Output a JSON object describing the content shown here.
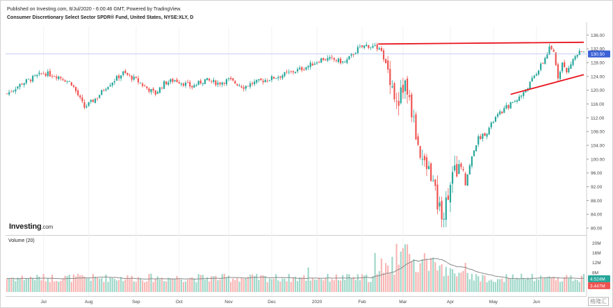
{
  "header": {
    "published": "Published on Investing.com, 8/Jul/2020 - 6:00:46 GMT, Powered by TradingView.",
    "title": "Consumer Discretionary Select Sector SPDR® Fund, United States, NYSE:XLY, D"
  },
  "logo": {
    "brand": "Investing",
    "suffix": ".com"
  },
  "volume_label": "Volume (20)",
  "watermark": "格隆汇",
  "colors": {
    "up": "#26a69a",
    "down": "#ef5350",
    "up_vol": "#9fd8c9",
    "down_vol": "#f7b6b4",
    "trend": "#e8141c",
    "ma": "#888888",
    "last_price": "#3d62d6"
  },
  "chart_data": {
    "type": "candlestick",
    "price_axis": {
      "ticks": [
        "136.00",
        "132.00",
        "128.00",
        "124.00",
        "120.00",
        "116.00",
        "112.00",
        "108.00",
        "104.00",
        "100.00",
        "96.00",
        "92.00",
        "88.00",
        "84.00",
        "80.00"
      ],
      "range": [
        78,
        138.5
      ]
    },
    "last_price": {
      "value": 130.5,
      "label": "130.50"
    },
    "volume_axis": {
      "ticks": [
        "20M",
        "16M",
        "12M",
        "8M"
      ],
      "range": [
        0,
        21
      ]
    },
    "volume_badges": [
      {
        "label": "4.524M",
        "value": 4.524,
        "color": "#26a69a"
      },
      {
        "label": "3.447M",
        "value": 3.447,
        "color": "#ef5350"
      }
    ],
    "x_labels": [
      {
        "label": "Jul",
        "day": 17
      },
      {
        "label": "Aug",
        "day": 38
      },
      {
        "label": "Sep",
        "day": 60
      },
      {
        "label": "Oct",
        "day": 80
      },
      {
        "label": "Nov",
        "day": 103
      },
      {
        "label": "Dec",
        "day": 123
      },
      {
        "label": "2020",
        "day": 144
      },
      {
        "label": "Feb",
        "day": 165
      },
      {
        "label": "Mar",
        "day": 184
      },
      {
        "label": "Apr",
        "day": 206
      },
      {
        "label": "May",
        "day": 226
      },
      {
        "label": "Jun",
        "day": 246
      }
    ],
    "days": 268,
    "key_points": [
      [
        0,
        119
      ],
      [
        7,
        122
      ],
      [
        17,
        125
      ],
      [
        24,
        124
      ],
      [
        30,
        122
      ],
      [
        36,
        115
      ],
      [
        42,
        118
      ],
      [
        46,
        121
      ],
      [
        54,
        125
      ],
      [
        60,
        123
      ],
      [
        64,
        121
      ],
      [
        69,
        119
      ],
      [
        73,
        122
      ],
      [
        78,
        123
      ],
      [
        86,
        121
      ],
      [
        92,
        123
      ],
      [
        98,
        122
      ],
      [
        103,
        123
      ],
      [
        110,
        121
      ],
      [
        114,
        122
      ],
      [
        120,
        123
      ],
      [
        126,
        124
      ],
      [
        131,
        125
      ],
      [
        136,
        126
      ],
      [
        140,
        127
      ],
      [
        146,
        129
      ],
      [
        151,
        129
      ],
      [
        157,
        128
      ],
      [
        163,
        132
      ],
      [
        167,
        133
      ],
      [
        171,
        132.5
      ],
      [
        174,
        131
      ],
      [
        178,
        124
      ],
      [
        181,
        116
      ],
      [
        185,
        122
      ],
      [
        188,
        114
      ],
      [
        191,
        104
      ],
      [
        194,
        98
      ],
      [
        197,
        96
      ],
      [
        200,
        87
      ],
      [
        203,
        84
      ],
      [
        206,
        94
      ],
      [
        210,
        98
      ],
      [
        213,
        93
      ],
      [
        217,
        103
      ],
      [
        219,
        106
      ],
      [
        223,
        108
      ],
      [
        227,
        112
      ],
      [
        232,
        115
      ],
      [
        236,
        117
      ],
      [
        240,
        119
      ],
      [
        244,
        123
      ],
      [
        249,
        128
      ],
      [
        252,
        132
      ],
      [
        254,
        131
      ],
      [
        256,
        124
      ],
      [
        258,
        128
      ],
      [
        260,
        125
      ],
      [
        263,
        129
      ],
      [
        266,
        131
      ],
      [
        268,
        130.5
      ]
    ],
    "trendlines": [
      {
        "from": [
          172.5,
          133.4
        ],
        "to": [
          268,
          133.9
        ]
      },
      {
        "from": [
          234,
          118.8
        ],
        "to": [
          268,
          124.5
        ]
      }
    ]
  }
}
